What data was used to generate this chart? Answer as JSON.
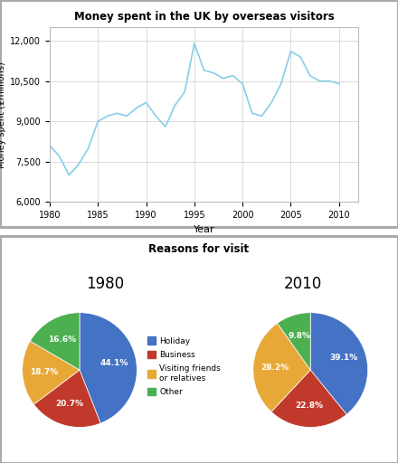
{
  "line_title": "Money spent in the UK by overseas visitors",
  "line_xlabel": "Year",
  "line_ylabel": "Money spent (£millions)",
  "line_years": [
    1980,
    1981,
    1982,
    1983,
    1984,
    1985,
    1986,
    1987,
    1988,
    1989,
    1990,
    1991,
    1992,
    1993,
    1994,
    1995,
    1996,
    1997,
    1998,
    1999,
    2000,
    2001,
    2002,
    2003,
    2004,
    2005,
    2006,
    2007,
    2008,
    2009,
    2010
  ],
  "line_values": [
    8100,
    7700,
    7000,
    7400,
    8000,
    9000,
    9200,
    9300,
    9200,
    9500,
    9700,
    9200,
    8800,
    9600,
    10100,
    11900,
    10900,
    10800,
    10600,
    10700,
    10400,
    9300,
    9200,
    9700,
    10400,
    11600,
    11400,
    10700,
    10500,
    10500,
    10400
  ],
  "line_color": "#87CEEB",
  "line_xlim": [
    1980,
    2012
  ],
  "line_ylim": [
    6000,
    12500
  ],
  "line_yticks": [
    6000,
    7500,
    9000,
    10500,
    12000
  ],
  "line_xticks": [
    1980,
    1985,
    1990,
    1995,
    2000,
    2005,
    2010
  ],
  "pie_title": "Reasons for visit",
  "pie_year1": "1980",
  "pie_year2": "2010",
  "pie1_values": [
    44.1,
    20.7,
    18.7,
    16.6
  ],
  "pie2_values": [
    39.1,
    22.8,
    28.2,
    9.8
  ],
  "pie_labels": [
    "Holiday",
    "Business",
    "Visiting friends\nor relatives",
    "Other"
  ],
  "pie_colors": [
    "#4472C4",
    "#C0392B",
    "#E8A838",
    "#4CAF50"
  ],
  "border_color": "#AAAAAA",
  "background_color": "#FFFFFF"
}
